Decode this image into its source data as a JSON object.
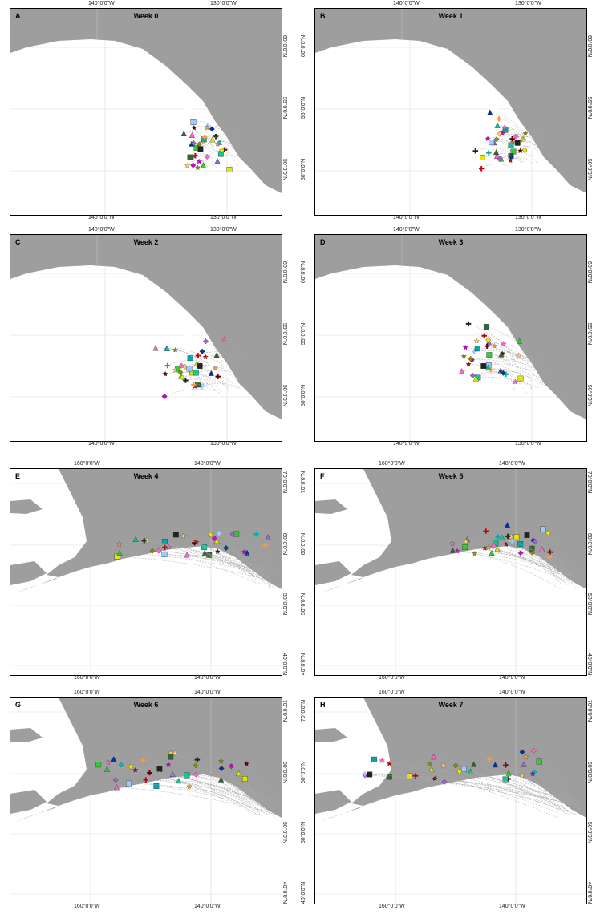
{
  "panels": [
    {
      "label": "A",
      "title": "Week 0",
      "xticks": [
        "140°0'0\"W",
        "130°0'0\"W"
      ],
      "yticks": [
        "60°0'0\"N",
        "55°0'0\"N",
        "50°0'0\"N"
      ],
      "map": "se-alaska"
    },
    {
      "label": "B",
      "title": "Week 1",
      "xticks": [
        "140°0'0\"W",
        "130°0'0\"W"
      ],
      "yticks": [
        "60°0'0\"N",
        "55°0'0\"N",
        "50°0'0\"N"
      ],
      "map": "se-alaska"
    },
    {
      "label": "C",
      "title": "Week 2",
      "xticks": [
        "140°0'0\"W",
        "130°0'0\"W"
      ],
      "yticks": [
        "60°0'0\"N",
        "55°0'0\"N",
        "50°0'0\"N"
      ],
      "map": "se-alaska"
    },
    {
      "label": "D",
      "title": "Week 3",
      "xticks": [
        "140°0'0\"W",
        "130°0'0\"W"
      ],
      "yticks": [
        "60°0'0\"N",
        "55°0'0\"N",
        "50°0'0\"N"
      ],
      "map": "se-alaska"
    },
    {
      "label": "E",
      "title": "Week 4",
      "xticks": [
        "160°0'0\"W",
        "140°0'0\"W"
      ],
      "yticks": [
        "70°0'0\"N",
        "60°0'0\"N",
        "50°0'0\"N",
        "40°0'0\"N"
      ],
      "map": "alaska"
    },
    {
      "label": "F",
      "title": "Week 5",
      "xticks": [
        "160°0'0\"W",
        "140°0'0\"W"
      ],
      "yticks": [
        "70°0'0\"N",
        "60°0'0\"N",
        "50°0'0\"N",
        "40°0'0\"N"
      ],
      "map": "alaska"
    },
    {
      "label": "G",
      "title": "Week 6",
      "xticks": [
        "160°0'0\"W",
        "140°0'0\"W"
      ],
      "yticks": [
        "70°0'0\"N",
        "60°0'0\"N",
        "50°0'0\"N",
        "40°0'0\"N"
      ],
      "map": "alaska"
    },
    {
      "label": "H",
      "title": "Week 7",
      "xticks": [
        "160°0'0\"W",
        "140°0'0\"W"
      ],
      "yticks": [
        "70°0'0\"N",
        "60°0'0\"N",
        "50°0'0\"N",
        "40°0'0\"N"
      ],
      "map": "alaska"
    }
  ],
  "colors": {
    "land": "#9e9e9e",
    "water": "#ffffff",
    "grid": "#d9d9d9",
    "track": "#aaaaaa"
  },
  "marker_palette": [
    "#e6e600",
    "#ff66cc",
    "#cc00cc",
    "#660000",
    "#00aaaa",
    "#33cc33",
    "#003399",
    "#8b8b00",
    "#cc0000",
    "#99ccff",
    "#336633",
    "#9966cc",
    "#ffcc66",
    "#ff9933",
    "#222222",
    "#00cc99"
  ],
  "marker_shapes": [
    "square",
    "triangle",
    "diamond",
    "star",
    "cross"
  ]
}
